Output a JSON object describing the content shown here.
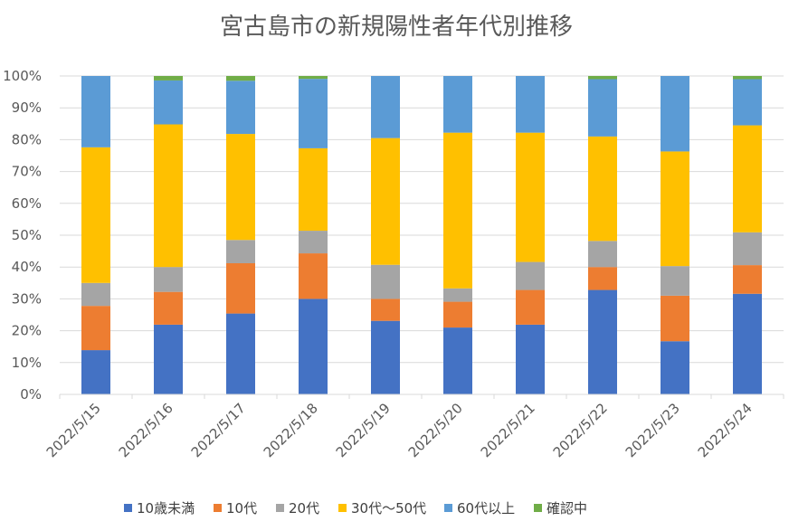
{
  "chart_data": {
    "type": "bar",
    "stacked": true,
    "percent": true,
    "title": "宮古島市の新規陽性者年代別推移",
    "categories": [
      "2022/5/15",
      "2022/5/16",
      "2022/5/17",
      "2022/5/18",
      "2022/5/19",
      "2022/5/20",
      "2022/5/21",
      "2022/5/22",
      "2022/5/23",
      "2022/5/24"
    ],
    "ylim": [
      0,
      100
    ],
    "y_ticks": [
      "0%",
      "10%",
      "20%",
      "30%",
      "40%",
      "50%",
      "60%",
      "70%",
      "80%",
      "90%",
      "100%"
    ],
    "grid": true,
    "legend_position": "bottom",
    "series": [
      {
        "name": "10歳未満",
        "color": "#4472C4",
        "values": [
          13.9,
          21.9,
          25.4,
          30.0,
          23.1,
          21.0,
          21.9,
          32.8,
          16.7,
          31.6
        ]
      },
      {
        "name": "10代",
        "color": "#ED7D31",
        "values": [
          13.9,
          10.3,
          15.8,
          14.3,
          6.9,
          8.1,
          10.9,
          7.2,
          14.3,
          9.0
        ]
      },
      {
        "name": "20代",
        "color": "#A5A5A5",
        "values": [
          7.2,
          7.8,
          7.3,
          7.1,
          10.7,
          4.2,
          8.8,
          8.2,
          9.3,
          10.3
        ]
      },
      {
        "name": "30代～50代",
        "color": "#FFC000",
        "values": [
          42.6,
          44.8,
          33.3,
          25.9,
          39.8,
          48.9,
          40.6,
          32.8,
          36.0,
          33.6
        ]
      },
      {
        "name": "60代以上",
        "color": "#5B9BD5",
        "values": [
          22.4,
          13.8,
          16.7,
          21.8,
          19.5,
          17.8,
          17.8,
          18.0,
          23.7,
          14.5
        ]
      },
      {
        "name": "確認中",
        "color": "#70AD47",
        "values": [
          0.0,
          1.4,
          1.5,
          0.9,
          0.0,
          0.0,
          0.0,
          1.0,
          0.0,
          1.0
        ]
      }
    ]
  }
}
